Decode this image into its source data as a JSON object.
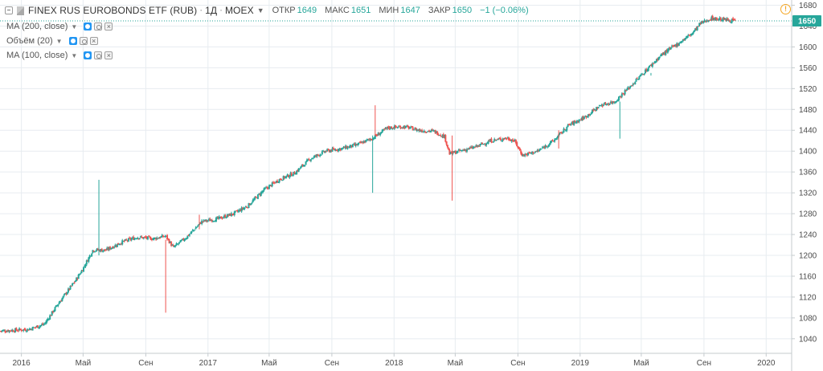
{
  "header": {
    "symbol": "FINEX RUS EUROBONDS ETF (RUB)",
    "interval": "1Д",
    "exchange": "MOEX",
    "open_label": "ОТКР",
    "open_value": "1649",
    "high_label": "МАКС",
    "high_value": "1651",
    "low_label": "МИН",
    "low_value": "1647",
    "close_label": "ЗАКР",
    "close_value": "1650",
    "change": "−1 (−0.06%)"
  },
  "indicators": [
    {
      "label": "MA (200, close)"
    },
    {
      "label": "Объём (20)"
    },
    {
      "label": "MA (100, close)"
    }
  ],
  "colors": {
    "up": "#26a69a",
    "down": "#ef5350",
    "grid": "#e7ecf0",
    "price_line": "#26a69a",
    "price_badge": "#26a69a",
    "axis_text": "#4a4a4a"
  },
  "icons": {
    "collapse": "collapse-icon",
    "alert": "alert-icon",
    "visibility": "eye-icon",
    "settings": "gear-icon",
    "remove": "close-icon"
  },
  "chart_data": {
    "type": "candlestick",
    "y_ticks": [
      1040,
      1080,
      1120,
      1160,
      1200,
      1240,
      1280,
      1320,
      1360,
      1400,
      1440,
      1480,
      1520,
      1560,
      1600,
      1640,
      1680
    ],
    "ylim": [
      1012,
      1690
    ],
    "x_ticks": [
      "2016",
      "Май",
      "Сен",
      "2017",
      "Май",
      "Сен",
      "2018",
      "Май",
      "Сен",
      "2019",
      "Май",
      "Сен",
      "2020"
    ],
    "x_tick_dates": [
      "2016-01-01",
      "2016-05-01",
      "2016-09-01",
      "2017-01-01",
      "2017-05-01",
      "2017-09-01",
      "2018-01-01",
      "2018-05-01",
      "2018-09-01",
      "2019-01-01",
      "2019-05-01",
      "2019-09-01",
      "2020-01-01"
    ],
    "x_range": [
      "2015-11-20",
      "2020-02-20"
    ],
    "last_price": 1650,
    "grid": true,
    "trend_close": [
      [
        "2015-11-20",
        1055
      ],
      [
        "2016-01-15",
        1058
      ],
      [
        "2016-02-15",
        1068
      ],
      [
        "2016-03-15",
        1110
      ],
      [
        "2016-04-15",
        1150
      ],
      [
        "2016-05-01",
        1175
      ],
      [
        "2016-05-20",
        1210
      ],
      [
        "2016-06-15",
        1210
      ],
      [
        "2016-07-15",
        1225
      ],
      [
        "2016-08-15",
        1235
      ],
      [
        "2016-09-15",
        1232
      ],
      [
        "2016-10-10",
        1237
      ],
      [
        "2016-10-25",
        1215
      ],
      [
        "2016-11-20",
        1235
      ],
      [
        "2016-12-20",
        1265
      ],
      [
        "2017-01-20",
        1270
      ],
      [
        "2017-02-20",
        1280
      ],
      [
        "2017-03-20",
        1295
      ],
      [
        "2017-04-20",
        1325
      ],
      [
        "2017-05-20",
        1345
      ],
      [
        "2017-06-20",
        1358
      ],
      [
        "2017-07-20",
        1385
      ],
      [
        "2017-08-20",
        1400
      ],
      [
        "2017-09-20",
        1405
      ],
      [
        "2017-10-20",
        1412
      ],
      [
        "2017-11-20",
        1425
      ],
      [
        "2017-12-20",
        1445
      ],
      [
        "2018-01-20",
        1447
      ],
      [
        "2018-02-20",
        1440
      ],
      [
        "2018-03-20",
        1438
      ],
      [
        "2018-04-10",
        1428
      ],
      [
        "2018-04-20",
        1395
      ],
      [
        "2018-05-10",
        1400
      ],
      [
        "2018-06-10",
        1408
      ],
      [
        "2018-07-10",
        1420
      ],
      [
        "2018-08-10",
        1425
      ],
      [
        "2018-08-25",
        1420
      ],
      [
        "2018-09-10",
        1392
      ],
      [
        "2018-10-10",
        1400
      ],
      [
        "2018-11-10",
        1420
      ],
      [
        "2018-12-10",
        1450
      ],
      [
        "2019-01-10",
        1465
      ],
      [
        "2019-02-10",
        1488
      ],
      [
        "2019-03-10",
        1495
      ],
      [
        "2019-04-10",
        1525
      ],
      [
        "2019-05-10",
        1555
      ],
      [
        "2019-06-10",
        1585
      ],
      [
        "2019-07-10",
        1605
      ],
      [
        "2019-08-10",
        1627
      ],
      [
        "2019-08-25",
        1645
      ],
      [
        "2019-09-15",
        1655
      ],
      [
        "2019-10-15",
        1652
      ],
      [
        "2019-11-01",
        1650
      ]
    ],
    "spikes": [
      {
        "date": "2016-06-01",
        "low": 1200,
        "high": 1345,
        "color": "up"
      },
      {
        "date": "2016-10-10",
        "low": 1090,
        "high": 1230,
        "color": "down"
      },
      {
        "date": "2016-12-15",
        "low": 1250,
        "high": 1278,
        "color": "down"
      },
      {
        "date": "2017-11-20",
        "low": 1320,
        "high": 1430,
        "color": "up"
      },
      {
        "date": "2017-11-25",
        "low": 1430,
        "high": 1488,
        "color": "down"
      },
      {
        "date": "2018-04-25",
        "low": 1305,
        "high": 1430,
        "color": "down"
      },
      {
        "date": "2018-11-20",
        "low": 1405,
        "high": 1440,
        "color": "down"
      },
      {
        "date": "2019-03-20",
        "low": 1424,
        "high": 1495,
        "color": "up"
      },
      {
        "date": "2019-05-20",
        "low": 1545,
        "high": 1550,
        "color": "up"
      }
    ]
  }
}
